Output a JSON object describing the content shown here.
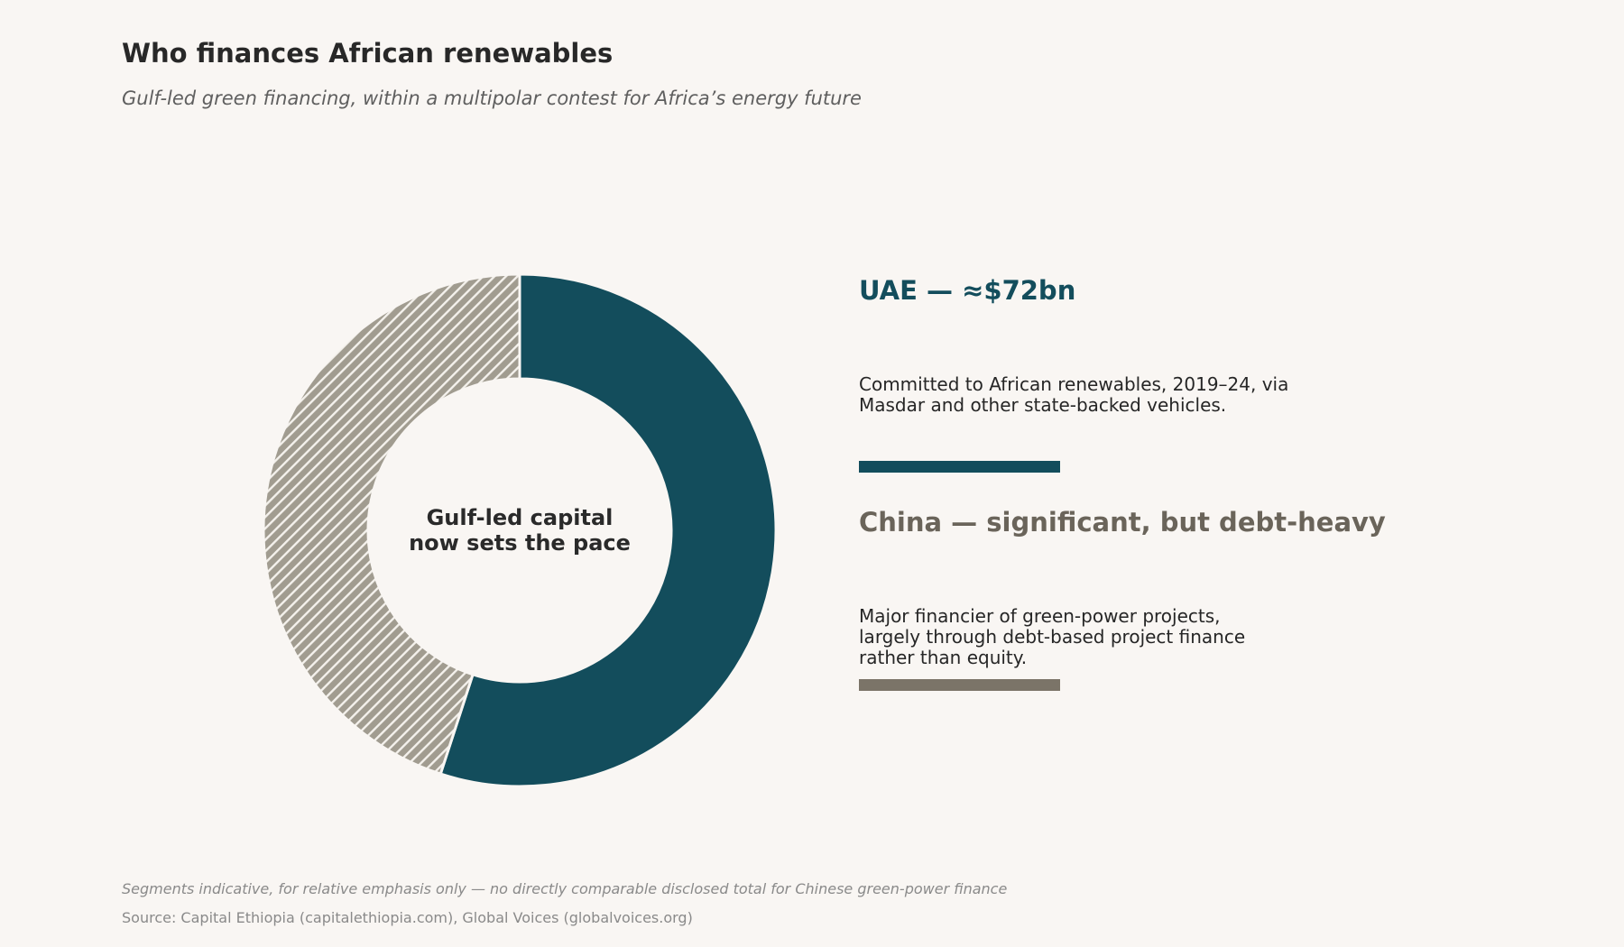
{
  "chart_data": {
    "type": "pie",
    "title": "Who finances African renewables",
    "subtitle": "Gulf-led green financing, within a multipolar contest for Africa’s energy future",
    "center_label": "Gulf-led capital\nnow sets the pace",
    "segments": [
      {
        "key": "uae",
        "heading": "UAE — ≈$72bn",
        "value": 72,
        "share": 0.55,
        "description": "Committed to African renewables, 2019–24, via\nMasdar and other state-backed vehicles.",
        "color": "#134d5c"
      },
      {
        "key": "china",
        "heading": "China — significant, but debt-heavy",
        "share": 0.45,
        "description": "Major financier of green-power projects,\nlargely through debt-based project finance\nrather than equity.",
        "color": "#a19c90",
        "heading_color": "#6a645a",
        "bar_color": "#7b7468",
        "pattern": "diagonal-hatch"
      }
    ],
    "footnote": "Segments indicative, for relative emphasis only — no directly comparable disclosed total for Chinese green-power finance",
    "source": "Source: Capital Ethiopia (capitalethiopia.com), Global Voices (globalvoices.org)"
  }
}
